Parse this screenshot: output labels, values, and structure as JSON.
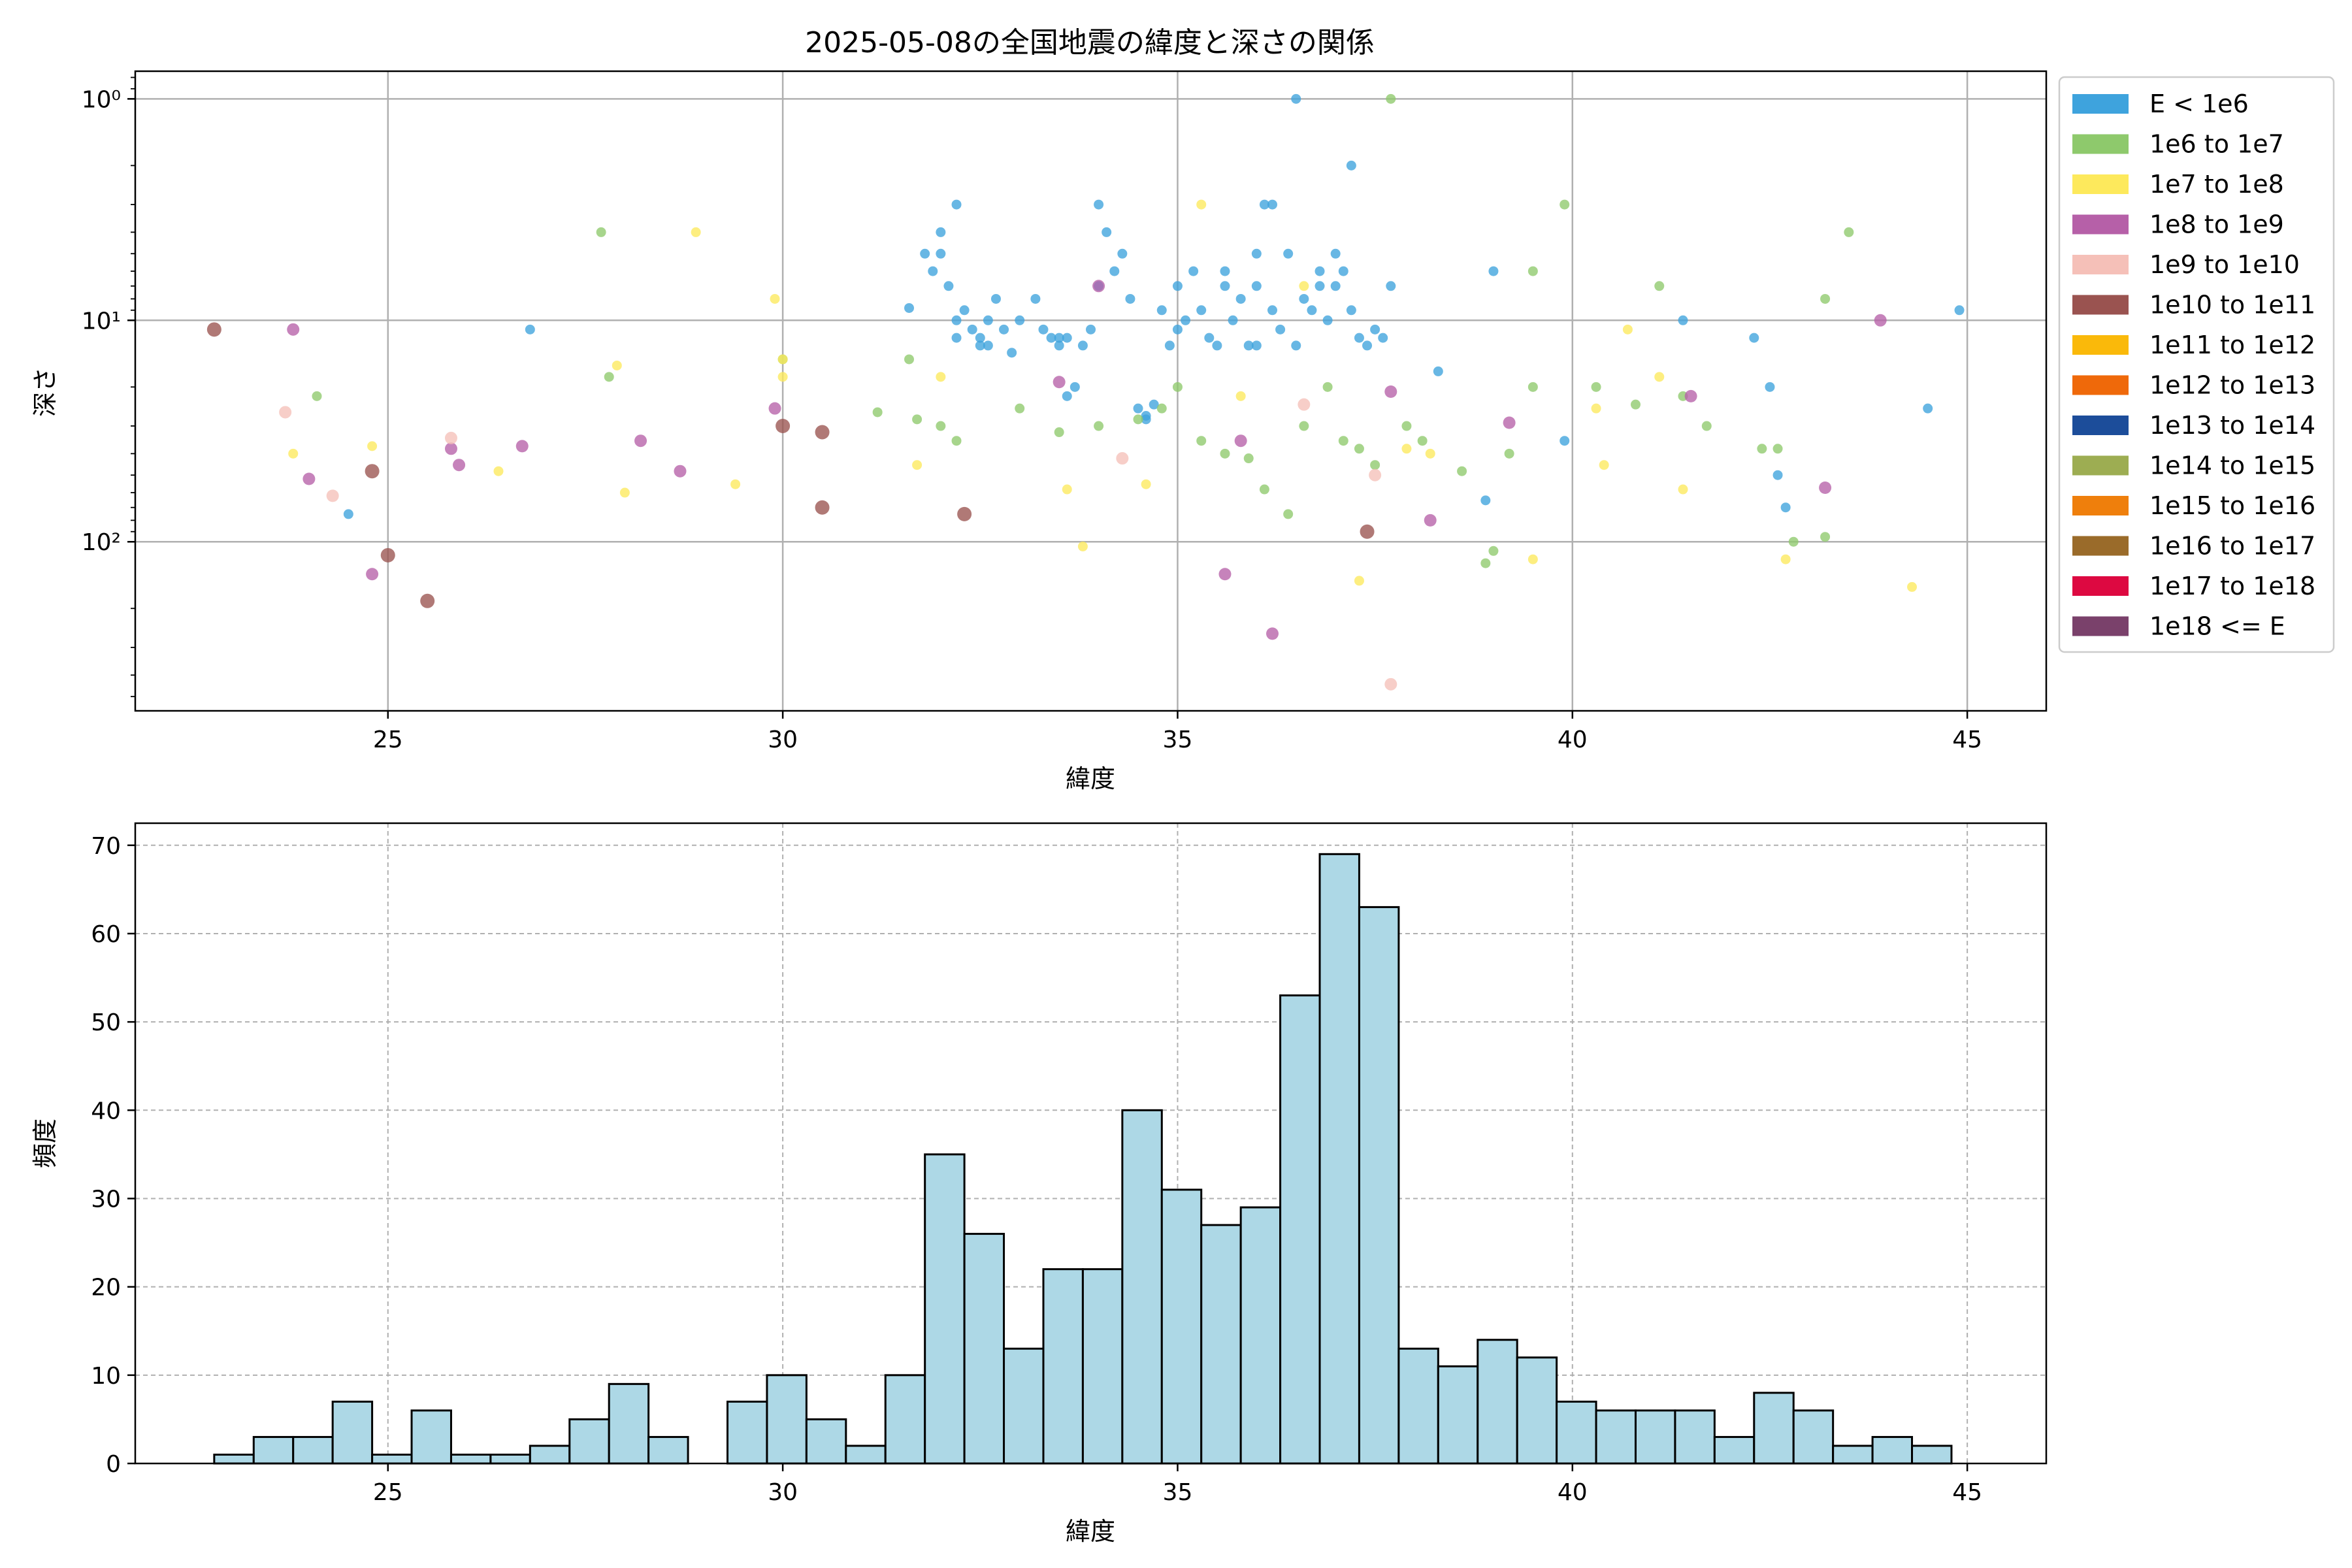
{
  "chart_data": [
    {
      "type": "scatter",
      "title": "2025-05-08の全国地震の緯度と深さの関係",
      "xlabel": "緯度",
      "ylabel": "深さ",
      "xlim": [
        21.8,
        46.0
      ],
      "ylim": [
        580,
        0.75
      ],
      "yscale": "log",
      "y_inverted": true,
      "xticks": [
        25,
        30,
        35,
        40,
        45
      ],
      "yticks": [
        {
          "value": 1,
          "label": "10⁰"
        },
        {
          "value": 10,
          "label": "10¹"
        },
        {
          "value": 100,
          "label": "10²"
        }
      ],
      "grid": true,
      "legend_position": "outside-right",
      "series": [
        {
          "name": "E < 1e6",
          "color": "#3ea3dd",
          "points": [
            [
              31.6,
              8.8
            ],
            [
              31.8,
              5
            ],
            [
              31.9,
              6
            ],
            [
              32.0,
              5
            ],
            [
              32.0,
              4
            ],
            [
              32.1,
              7
            ],
            [
              32.2,
              10
            ],
            [
              32.2,
              3
            ],
            [
              32.2,
              12
            ],
            [
              32.3,
              9
            ],
            [
              32.4,
              11
            ],
            [
              32.5,
              12
            ],
            [
              32.6,
              13
            ],
            [
              32.6,
              10
            ],
            [
              32.7,
              8
            ],
            [
              32.8,
              11
            ],
            [
              32.9,
              14
            ],
            [
              33.0,
              10
            ],
            [
              33.2,
              8
            ],
            [
              33.3,
              11
            ],
            [
              33.4,
              12
            ],
            [
              33.5,
              13
            ],
            [
              33.6,
              12
            ],
            [
              33.6,
              22
            ],
            [
              33.7,
              20
            ],
            [
              33.8,
              13
            ],
            [
              33.9,
              11
            ],
            [
              34.0,
              7
            ],
            [
              34.0,
              3
            ],
            [
              34.1,
              4
            ],
            [
              34.2,
              6
            ],
            [
              34.3,
              5
            ],
            [
              34.4,
              8
            ],
            [
              34.5,
              25
            ],
            [
              34.6,
              27
            ],
            [
              34.7,
              24
            ],
            [
              34.8,
              9
            ],
            [
              34.9,
              13
            ],
            [
              35.0,
              7
            ],
            [
              35.0,
              11
            ],
            [
              35.1,
              10
            ],
            [
              35.2,
              6
            ],
            [
              35.3,
              9
            ],
            [
              35.4,
              12
            ],
            [
              35.5,
              13
            ],
            [
              35.6,
              7
            ],
            [
              35.7,
              10
            ],
            [
              35.8,
              8
            ],
            [
              35.9,
              13
            ],
            [
              36.0,
              5
            ],
            [
              36.0,
              7
            ],
            [
              36.1,
              3
            ],
            [
              36.2,
              9
            ],
            [
              36.3,
              11
            ],
            [
              36.4,
              5
            ],
            [
              36.5,
              13
            ],
            [
              36.5,
              1
            ],
            [
              36.6,
              8
            ],
            [
              36.7,
              9
            ],
            [
              36.8,
              7
            ],
            [
              36.9,
              10
            ],
            [
              37.0,
              5
            ],
            [
              37.0,
              7
            ],
            [
              37.1,
              6
            ],
            [
              37.2,
              2
            ],
            [
              37.2,
              9
            ],
            [
              37.3,
              12
            ],
            [
              37.4,
              13
            ],
            [
              37.5,
              11
            ],
            [
              37.6,
              12
            ],
            [
              37.7,
              7
            ],
            [
              36.2,
              3
            ],
            [
              35.6,
              6
            ],
            [
              34.6,
              28
            ],
            [
              33.5,
              12
            ],
            [
              36.0,
              13
            ],
            [
              36.8,
              6
            ],
            [
              32.5,
              13
            ],
            [
              26.8,
              11
            ],
            [
              24.5,
              75
            ],
            [
              38.3,
              17
            ],
            [
              38.9,
              65
            ],
            [
              39.0,
              6
            ],
            [
              39.9,
              35
            ],
            [
              41.4,
              10
            ],
            [
              42.3,
              12
            ],
            [
              42.5,
              20
            ],
            [
              42.6,
              50
            ],
            [
              42.7,
              70
            ],
            [
              44.5,
              25
            ],
            [
              44.9,
              9
            ]
          ]
        },
        {
          "name": "1e6 to 1e7",
          "color": "#8ec96c",
          "points": [
            [
              24.1,
              22
            ],
            [
              27.7,
              4
            ],
            [
              27.8,
              18
            ],
            [
              31.6,
              15
            ],
            [
              32.0,
              30
            ],
            [
              32.2,
              35
            ],
            [
              33.0,
              25
            ],
            [
              33.5,
              32
            ],
            [
              34.0,
              30
            ],
            [
              34.5,
              28
            ],
            [
              34.8,
              25
            ],
            [
              35.0,
              20
            ],
            [
              35.3,
              35
            ],
            [
              35.6,
              40
            ],
            [
              35.9,
              42
            ],
            [
              36.1,
              58
            ],
            [
              36.4,
              75
            ],
            [
              36.6,
              30
            ],
            [
              36.9,
              20
            ],
            [
              37.1,
              35
            ],
            [
              37.3,
              38
            ],
            [
              37.5,
              45
            ],
            [
              37.7,
              1
            ],
            [
              37.9,
              30
            ],
            [
              38.1,
              35
            ],
            [
              38.6,
              48
            ],
            [
              39.0,
              110
            ],
            [
              39.2,
              40
            ],
            [
              39.5,
              20
            ],
            [
              39.5,
              6
            ],
            [
              39.9,
              3
            ],
            [
              40.3,
              20
            ],
            [
              40.8,
              24
            ],
            [
              41.1,
              7
            ],
            [
              41.4,
              22
            ],
            [
              41.7,
              30
            ],
            [
              42.4,
              38
            ],
            [
              42.6,
              38
            ],
            [
              42.8,
              100
            ],
            [
              43.2,
              8
            ],
            [
              43.5,
              4
            ],
            [
              43.2,
              95
            ],
            [
              38.9,
              125
            ],
            [
              30.0,
              15
            ],
            [
              31.2,
              26
            ],
            [
              31.7,
              28
            ]
          ]
        },
        {
          "name": "1e7 to 1e8",
          "color": "#fde95c",
          "points": [
            [
              23.8,
              40
            ],
            [
              24.8,
              37
            ],
            [
              26.4,
              48
            ],
            [
              27.9,
              16
            ],
            [
              28.0,
              60
            ],
            [
              28.9,
              4
            ],
            [
              29.4,
              55
            ],
            [
              29.9,
              8
            ],
            [
              30.0,
              18
            ],
            [
              30.0,
              15
            ],
            [
              31.7,
              45
            ],
            [
              32.0,
              18
            ],
            [
              33.6,
              58
            ],
            [
              33.8,
              105
            ],
            [
              34.6,
              55
            ],
            [
              35.3,
              3
            ],
            [
              35.8,
              22
            ],
            [
              36.6,
              7
            ],
            [
              37.3,
              150
            ],
            [
              37.9,
              38
            ],
            [
              38.2,
              40
            ],
            [
              39.5,
              120
            ],
            [
              40.3,
              25
            ],
            [
              40.4,
              45
            ],
            [
              40.7,
              11
            ],
            [
              41.1,
              18
            ],
            [
              41.4,
              58
            ],
            [
              42.7,
              120
            ],
            [
              44.3,
              160
            ]
          ]
        },
        {
          "name": "1e8 to 1e9",
          "color": "#b660a8",
          "points": [
            [
              23.8,
              11
            ],
            [
              24.0,
              52
            ],
            [
              24.8,
              140
            ],
            [
              25.8,
              38
            ],
            [
              25.9,
              45
            ],
            [
              26.7,
              37
            ],
            [
              28.2,
              35
            ],
            [
              28.7,
              48
            ],
            [
              29.9,
              25
            ],
            [
              33.5,
              19
            ],
            [
              34.0,
              7
            ],
            [
              35.6,
              140
            ],
            [
              35.8,
              35
            ],
            [
              36.2,
              260
            ],
            [
              37.7,
              21
            ],
            [
              38.2,
              80
            ],
            [
              39.2,
              29
            ],
            [
              41.5,
              22
            ],
            [
              43.2,
              57
            ],
            [
              43.9,
              10
            ]
          ]
        },
        {
          "name": "1e9 to 1e10",
          "color": "#f5c0b8",
          "points": [
            [
              23.7,
              26
            ],
            [
              24.3,
              62
            ],
            [
              25.8,
              34
            ],
            [
              34.3,
              42
            ],
            [
              36.6,
              24
            ],
            [
              37.5,
              50
            ],
            [
              37.7,
              440
            ]
          ]
        },
        {
          "name": "1e10 to 1e11",
          "color": "#9a5350",
          "points": [
            [
              22.8,
              11
            ],
            [
              24.8,
              48
            ],
            [
              25.0,
              115
            ],
            [
              25.5,
              185
            ],
            [
              30.0,
              30
            ],
            [
              30.5,
              32
            ],
            [
              30.5,
              70
            ],
            [
              32.3,
              75
            ],
            [
              37.4,
              90
            ]
          ]
        }
      ],
      "legend": [
        {
          "label": "E < 1e6",
          "color": "#3ea3dd"
        },
        {
          "label": "1e6 to 1e7",
          "color": "#8ec96c"
        },
        {
          "label": "1e7 to 1e8",
          "color": "#fde95c"
        },
        {
          "label": "1e8 to 1e9",
          "color": "#b660a8"
        },
        {
          "label": "1e9 to 1e10",
          "color": "#f5c0b8"
        },
        {
          "label": "1e10 to 1e11",
          "color": "#9a5350"
        },
        {
          "label": "1e11 to 1e12",
          "color": "#fab90a"
        },
        {
          "label": "1e12 to 1e13",
          "color": "#ef690a"
        },
        {
          "label": "1e13 to 1e14",
          "color": "#1c4d9a"
        },
        {
          "label": "1e14 to 1e15",
          "color": "#9dad52"
        },
        {
          "label": "1e15 to 1e16",
          "color": "#ef7f0c"
        },
        {
          "label": "1e16 to 1e17",
          "color": "#9a6b2a"
        },
        {
          "label": "1e17 to 1e18",
          "color": "#dd0941"
        },
        {
          "label": "1e18 <= E",
          "color": "#7a416b"
        }
      ]
    },
    {
      "type": "bar",
      "subtype": "histogram",
      "xlabel": "緯度",
      "ylabel": "頻度",
      "xlim": [
        21.8,
        46.0
      ],
      "ylim": [
        0,
        72.5
      ],
      "xticks": [
        25,
        30,
        35,
        40,
        45
      ],
      "yticks": [
        0,
        10,
        20,
        30,
        40,
        50,
        60,
        70
      ],
      "grid": true,
      "bar_color": "#add8e6",
      "edge_color": "#000000",
      "bin_start": 22.8,
      "bin_width": 0.5,
      "values": [
        1,
        3,
        3,
        7,
        1,
        6,
        1,
        1,
        2,
        5,
        9,
        3,
        0,
        7,
        10,
        5,
        2,
        10,
        35,
        26,
        13,
        22,
        22,
        40,
        31,
        27,
        29,
        53,
        69,
        63,
        13,
        11,
        14,
        12,
        7,
        6,
        6,
        6,
        3,
        8,
        6,
        2,
        3,
        2
      ]
    }
  ]
}
